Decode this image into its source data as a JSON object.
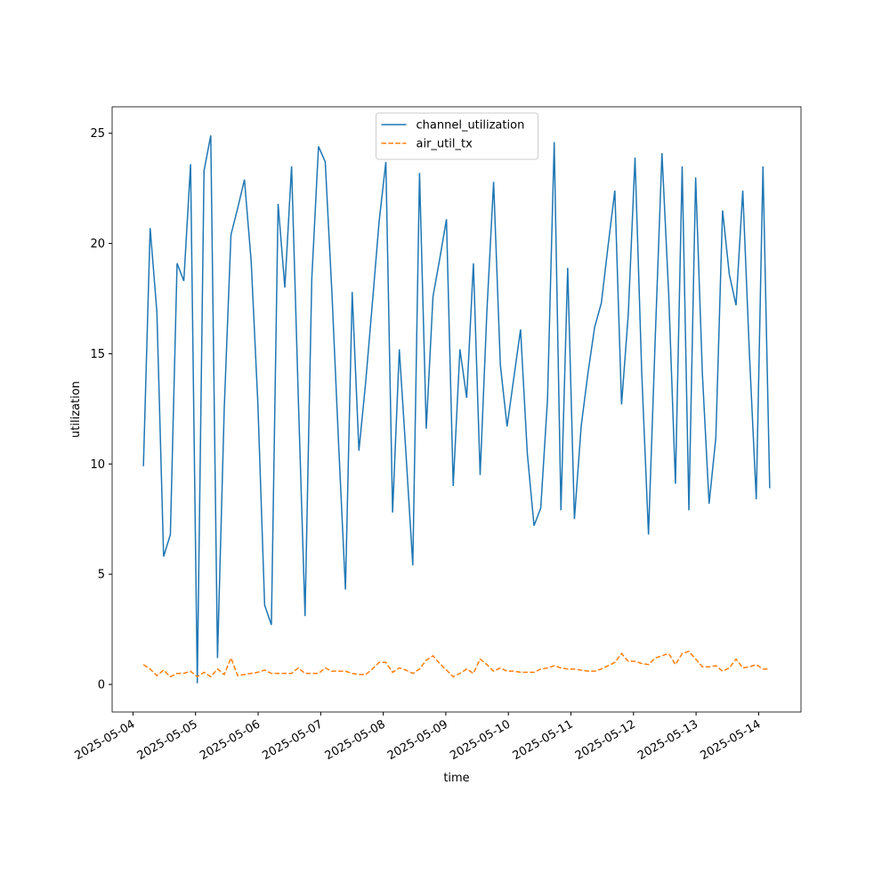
{
  "chart_data": {
    "type": "line",
    "xlabel": "time",
    "ylabel": "utilization",
    "x": [
      "2025-05-04 04:00",
      "2025-05-04 06:35",
      "2025-05-04 09:10",
      "2025-05-04 11:45",
      "2025-05-04 14:20",
      "2025-05-04 16:55",
      "2025-05-04 19:30",
      "2025-05-04 22:05",
      "2025-05-05 00:40",
      "2025-05-05 03:15",
      "2025-05-05 05:50",
      "2025-05-05 08:25",
      "2025-05-05 11:00",
      "2025-05-05 13:35",
      "2025-05-05 16:10",
      "2025-05-05 18:45",
      "2025-05-05 21:20",
      "2025-05-05 23:55",
      "2025-05-06 02:30",
      "2025-05-06 05:05",
      "2025-05-06 07:40",
      "2025-05-06 10:15",
      "2025-05-06 12:50",
      "2025-05-06 15:25",
      "2025-05-06 18:00",
      "2025-05-06 20:35",
      "2025-05-06 23:10",
      "2025-05-07 01:45",
      "2025-05-07 04:20",
      "2025-05-07 06:55",
      "2025-05-07 09:30",
      "2025-05-07 12:05",
      "2025-05-07 14:40",
      "2025-05-07 17:15",
      "2025-05-07 19:50",
      "2025-05-07 22:25",
      "2025-05-08 01:00",
      "2025-05-08 03:35",
      "2025-05-08 06:10",
      "2025-05-08 08:45",
      "2025-05-08 11:20",
      "2025-05-08 13:55",
      "2025-05-08 16:30",
      "2025-05-08 19:05",
      "2025-05-08 21:40",
      "2025-05-09 00:15",
      "2025-05-09 02:50",
      "2025-05-09 05:25",
      "2025-05-09 08:00",
      "2025-05-09 10:35",
      "2025-05-09 13:10",
      "2025-05-09 15:45",
      "2025-05-09 18:20",
      "2025-05-09 20:55",
      "2025-05-09 23:30",
      "2025-05-10 02:05",
      "2025-05-10 04:40",
      "2025-05-10 07:15",
      "2025-05-10 09:50",
      "2025-05-10 12:25",
      "2025-05-10 15:00",
      "2025-05-10 17:35",
      "2025-05-10 20:10",
      "2025-05-10 22:45",
      "2025-05-11 01:20",
      "2025-05-11 03:55",
      "2025-05-11 06:30",
      "2025-05-11 09:05",
      "2025-05-11 11:40",
      "2025-05-11 14:15",
      "2025-05-11 16:50",
      "2025-05-11 19:25",
      "2025-05-11 22:00",
      "2025-05-12 00:35",
      "2025-05-12 03:10",
      "2025-05-12 05:45",
      "2025-05-12 08:20",
      "2025-05-12 10:55",
      "2025-05-12 13:30",
      "2025-05-12 16:05",
      "2025-05-12 18:40",
      "2025-05-12 21:15",
      "2025-05-12 23:50",
      "2025-05-13 02:25",
      "2025-05-13 05:00",
      "2025-05-13 07:35",
      "2025-05-13 10:10",
      "2025-05-13 12:45",
      "2025-05-13 15:20",
      "2025-05-13 17:55",
      "2025-05-13 20:30",
      "2025-05-13 23:05",
      "2025-05-14 01:40",
      "2025-05-14 04:15"
    ],
    "series": [
      {
        "name": "channel_utilization",
        "color": "#1f77b4",
        "dash": "solid",
        "values": [
          9.9,
          20.7,
          16.9,
          5.8,
          6.8,
          19.1,
          18.3,
          23.6,
          0.05,
          23.3,
          24.9,
          1.2,
          12.5,
          20.4,
          21.6,
          22.9,
          19.2,
          12.7,
          3.6,
          2.7,
          21.8,
          18.0,
          23.5,
          13.0,
          3.1,
          18.4,
          24.4,
          23.7,
          17.7,
          10.8,
          4.3,
          17.8,
          10.6,
          13.7,
          17.3,
          21.0,
          23.7,
          7.8,
          15.2,
          10.4,
          5.4,
          23.2,
          11.6,
          17.6,
          19.3,
          21.1,
          9.0,
          15.2,
          13.0,
          19.1,
          9.5,
          16.9,
          22.8,
          14.5,
          11.7,
          13.9,
          16.1,
          10.5,
          7.2,
          8.0,
          12.9,
          24.6,
          7.9,
          18.9,
          7.5,
          11.7,
          14.1,
          16.2,
          17.3,
          19.9,
          22.4,
          12.7,
          16.8,
          23.9,
          14.1,
          6.8,
          15.7,
          24.1,
          17.7,
          9.1,
          23.5,
          7.9,
          23.0,
          14.1,
          8.2,
          11.2,
          21.5,
          18.6,
          17.2,
          22.4,
          14.9,
          8.4,
          23.5,
          8.9
        ]
      },
      {
        "name": "air_util_tx",
        "color": "#ff7f0e",
        "dash": "dashed",
        "values": [
          0.9,
          0.7,
          0.4,
          0.65,
          0.35,
          0.5,
          0.5,
          0.6,
          0.35,
          0.55,
          0.35,
          0.7,
          0.45,
          1.2,
          0.4,
          0.45,
          0.5,
          0.55,
          0.65,
          0.5,
          0.5,
          0.5,
          0.5,
          0.75,
          0.5,
          0.5,
          0.5,
          0.75,
          0.6,
          0.6,
          0.6,
          0.5,
          0.45,
          0.45,
          0.7,
          1.0,
          1.0,
          0.55,
          0.75,
          0.65,
          0.5,
          0.7,
          1.1,
          1.3,
          0.95,
          0.65,
          0.35,
          0.5,
          0.7,
          0.5,
          1.15,
          0.9,
          0.6,
          0.75,
          0.6,
          0.6,
          0.55,
          0.55,
          0.55,
          0.7,
          0.75,
          0.85,
          0.75,
          0.7,
          0.7,
          0.65,
          0.6,
          0.6,
          0.7,
          0.85,
          1.0,
          1.4,
          1.05,
          1.05,
          0.95,
          0.9,
          1.2,
          1.3,
          1.4,
          0.9,
          1.4,
          1.5,
          1.15,
          0.8,
          0.8,
          0.85,
          0.6,
          0.75,
          1.15,
          0.75,
          0.8,
          0.9,
          0.7,
          0.7
        ]
      }
    ],
    "xlim": [
      "2025-05-03 16:00",
      "2025-05-14 16:15"
    ],
    "xticks": [
      "2025-05-04",
      "2025-05-05",
      "2025-05-06",
      "2025-05-07",
      "2025-05-08",
      "2025-05-09",
      "2025-05-10",
      "2025-05-11",
      "2025-05-12",
      "2025-05-13",
      "2025-05-14"
    ],
    "ylim": [
      -1.25,
      26.2
    ],
    "yticks": [
      0,
      5,
      10,
      15,
      20,
      25
    ],
    "grid": false,
    "legend": "upper center"
  }
}
